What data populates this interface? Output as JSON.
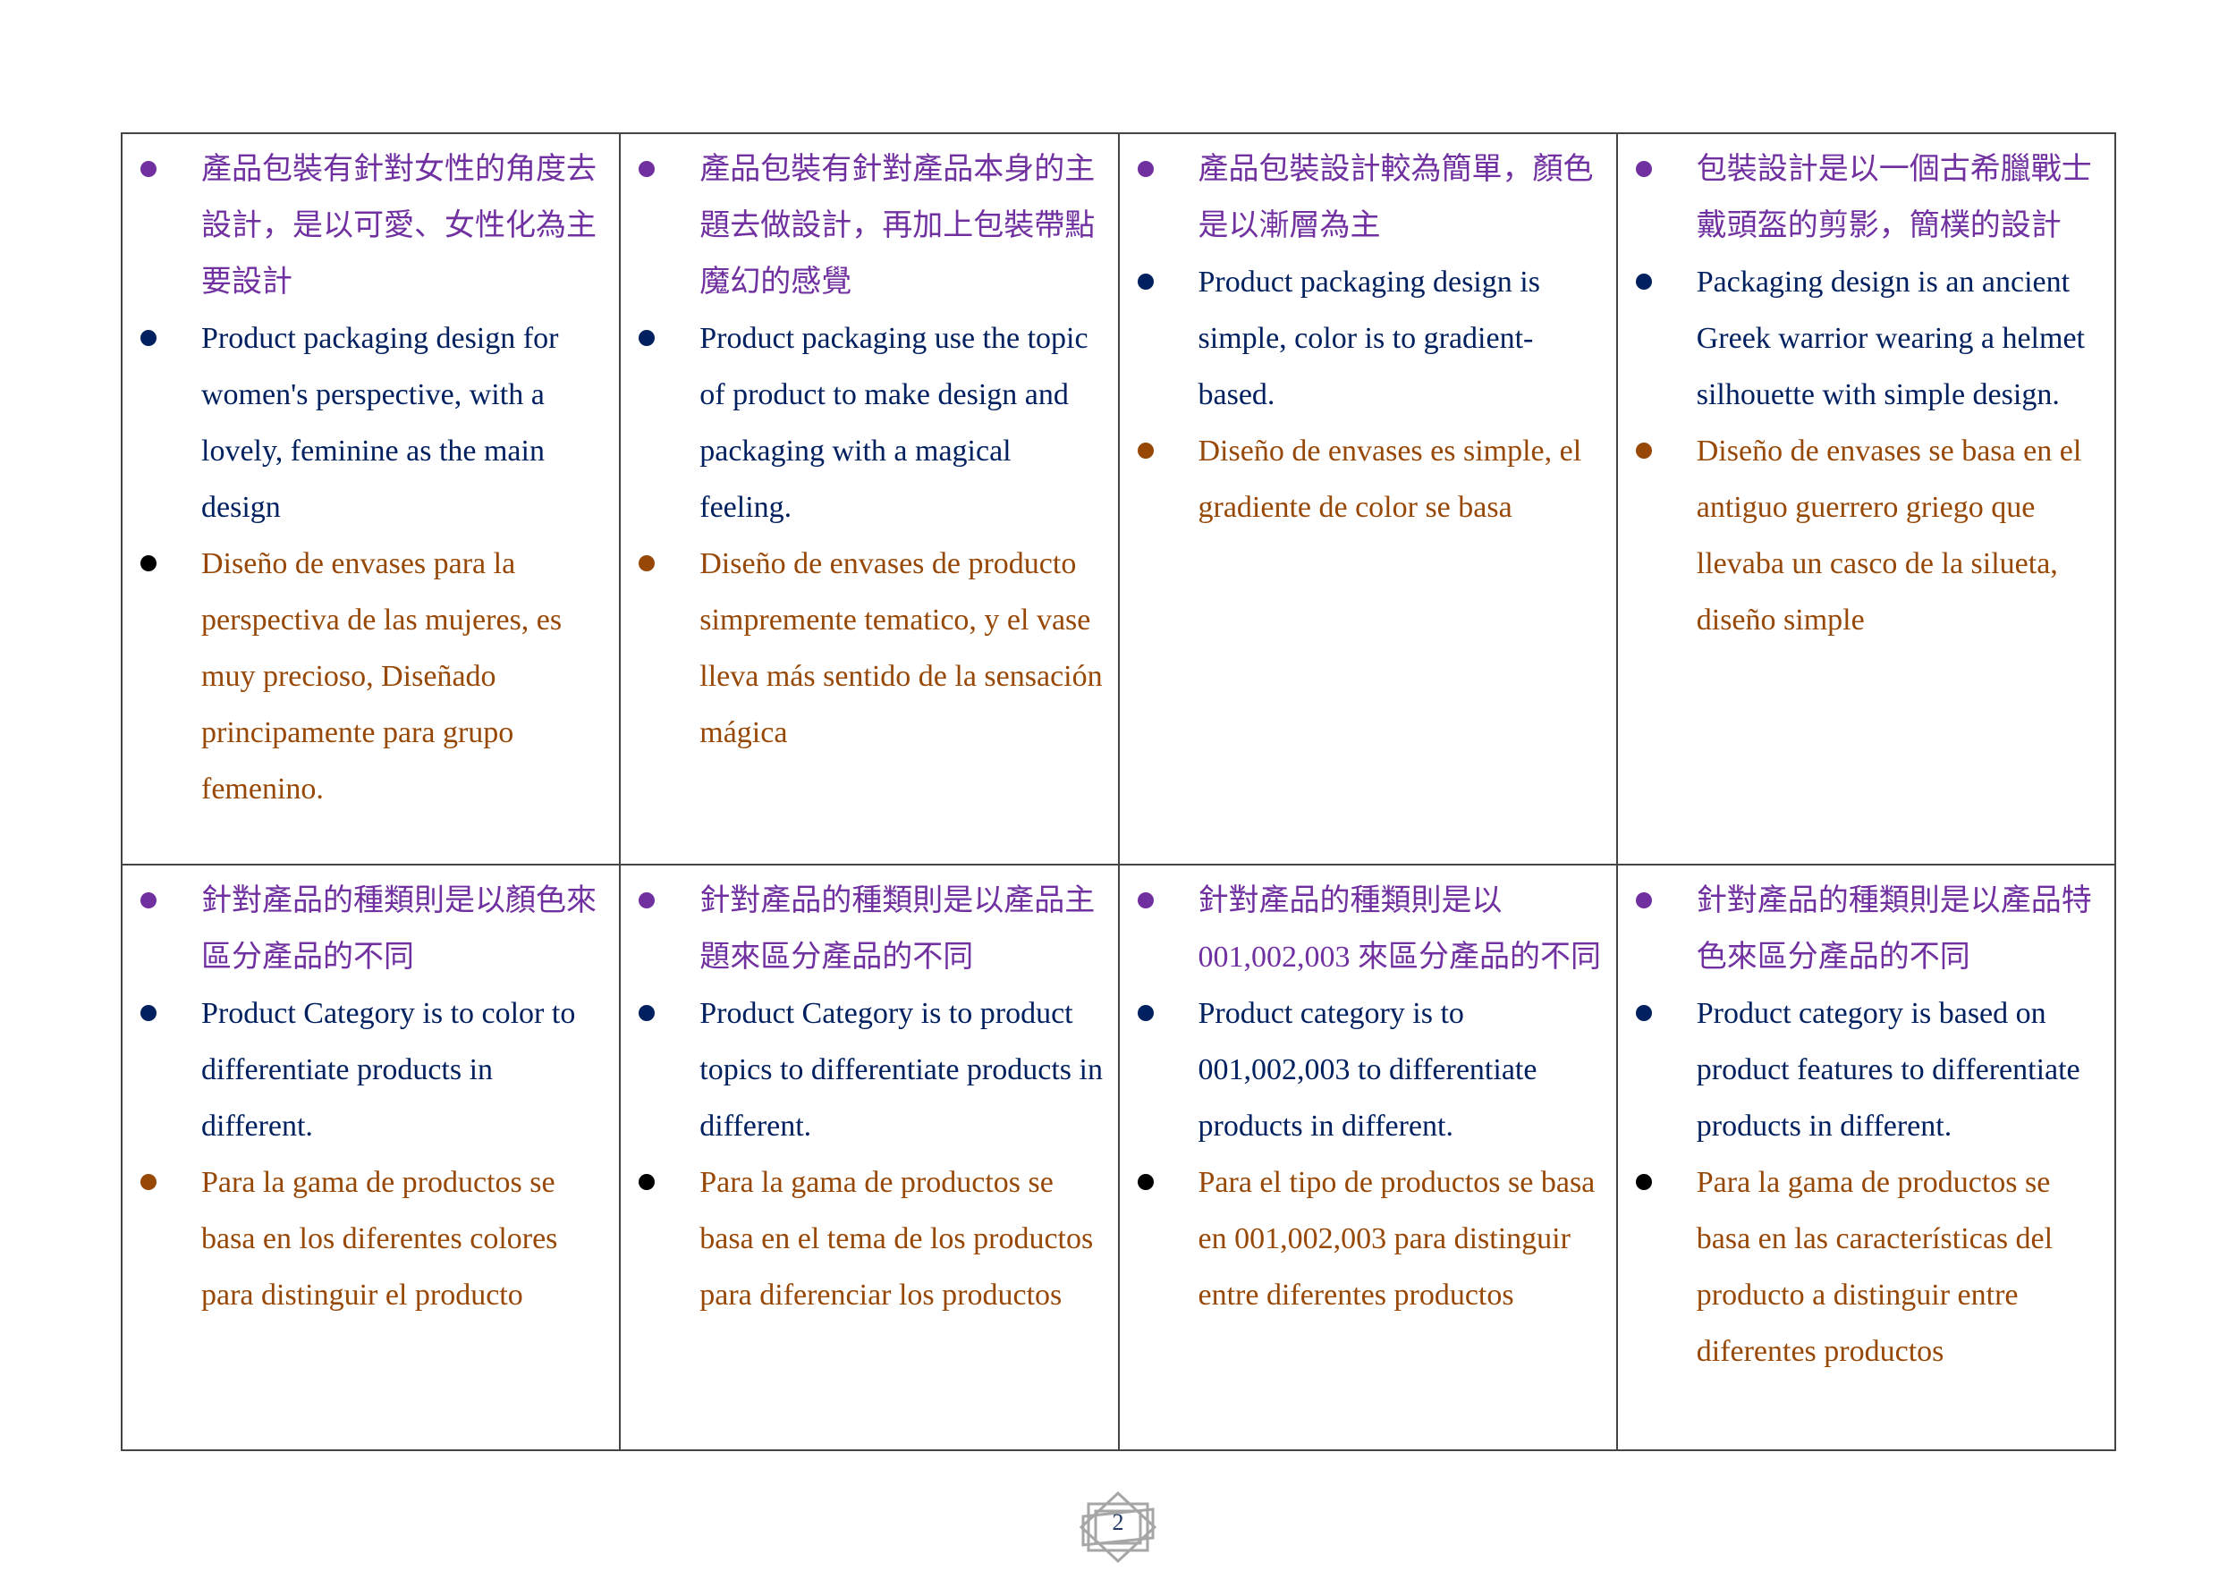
{
  "colors": {
    "chinese": "#7030a0",
    "english": "#002060",
    "spanish": "#984806",
    "bullet_black": "#000000"
  },
  "rows": [
    [
      {
        "items": [
          {
            "lang": "zh",
            "bullet": "#7030a0",
            "text": "產品包裝有針對女性的角度去設計，是以可愛、女性化為主要設計"
          },
          {
            "lang": "en",
            "bullet": "#002060",
            "text": "Product packaging design for women's perspective, with a lovely, feminine as the main design"
          },
          {
            "lang": "es",
            "bullet": "#000000",
            "text": "Diseño de envases para la perspectiva de las mujeres, es muy precioso, Diseñado principamente para grupo femenino."
          }
        ]
      },
      {
        "items": [
          {
            "lang": "zh",
            "bullet": "#7030a0",
            "text": "產品包裝有針對產品本身的主題去做設計，再加上包裝帶點魔幻的感覺"
          },
          {
            "lang": "en",
            "bullet": "#002060",
            "text": "Product packaging use the topic of product to make design and packaging with a magical feeling."
          },
          {
            "lang": "es",
            "bullet": "#984806",
            "text": "Diseño de envases de producto simpremente tematico, y el vase lleva más sentido de la sensación mágica"
          }
        ]
      },
      {
        "items": [
          {
            "lang": "zh",
            "bullet": "#7030a0",
            "text": "產品包裝設計較為簡單，顏色是以漸層為主"
          },
          {
            "lang": "en",
            "bullet": "#002060",
            "text": "Product packaging design is simple, color is to gradient-based."
          },
          {
            "lang": "es",
            "bullet": "#984806",
            "text": "Diseño de envases es simple, el gradiente de color se basa"
          }
        ]
      },
      {
        "items": [
          {
            "lang": "zh",
            "bullet": "#7030a0",
            "text": "包裝設計是以一個古希臘戰士戴頭盔的剪影，簡樸的設計"
          },
          {
            "lang": "en",
            "bullet": "#002060",
            "text": "Packaging design is an ancient Greek warrior wearing a helmet silhouette with simple design."
          },
          {
            "lang": "es",
            "bullet": "#984806",
            "text": "Diseño de envases se basa en el antiguo guerrero griego que llevaba un casco de la silueta, diseño simple"
          }
        ]
      }
    ],
    [
      {
        "items": [
          {
            "lang": "zh",
            "bullet": "#7030a0",
            "text": "針對產品的種類則是以顏色來區分產品的不同"
          },
          {
            "lang": "en",
            "bullet": "#002060",
            "text": "Product Category is to color to differentiate products in different."
          },
          {
            "lang": "es",
            "bullet": "#984806",
            "text": "Para la gama de productos se basa en los diferentes colores para distinguir el producto"
          }
        ]
      },
      {
        "items": [
          {
            "lang": "zh",
            "bullet": "#7030a0",
            "text": "針對產品的種類則是以產品主題來區分產品的不同"
          },
          {
            "lang": "en",
            "bullet": "#002060",
            "text": "Product Category is to product topics to differentiate products in different."
          },
          {
            "lang": "es",
            "bullet": "#000000",
            "text": "Para la gama de productos se basa en el tema de los productos para diferenciar los productos"
          }
        ]
      },
      {
        "items": [
          {
            "lang": "zh",
            "bullet": "#7030a0",
            "text": "針對產品的種類則是以001,002,003 來區分產品的不同"
          },
          {
            "lang": "en",
            "bullet": "#002060",
            "text": "Product category is to 001,002,003 to differentiate products in different."
          },
          {
            "lang": "es",
            "bullet": "#000000",
            "text": "Para el tipo de productos se basa en 001,002,003 para distinguir entre diferentes productos"
          }
        ]
      },
      {
        "items": [
          {
            "lang": "zh",
            "bullet": "#7030a0",
            "text": "針對產品的種類則是以產品特色來區分產品的不同"
          },
          {
            "lang": "en",
            "bullet": "#002060",
            "text": "Product category is based on product features to differentiate products in different."
          },
          {
            "lang": "es",
            "bullet": "#000000",
            "text": "Para la gama de productos se basa en las características del producto a distinguir entre diferentes productos"
          }
        ]
      }
    ]
  ],
  "footer": {
    "page_number": "2"
  }
}
